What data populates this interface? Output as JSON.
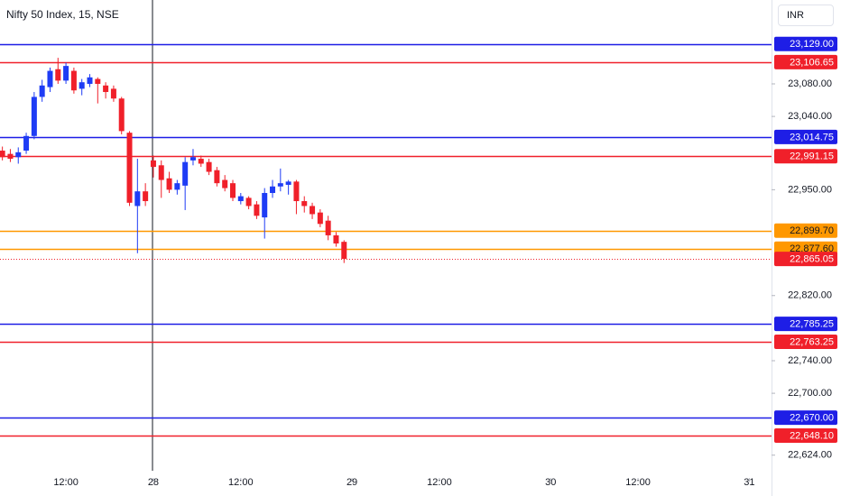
{
  "chart_data": {
    "type": "candlestick",
    "title": "Nifty 50 Index, 15, NSE",
    "currency": "INR",
    "up_color": "#1e3cf5",
    "down_color": "#f0202a",
    "x": [
      6,
      7,
      8,
      9,
      10,
      11,
      12,
      13,
      14,
      15,
      16,
      17,
      18,
      19,
      20,
      21,
      22,
      23,
      24,
      25,
      26,
      27,
      28,
      29,
      30,
      31,
      32,
      33,
      34,
      35,
      36,
      37,
      38,
      39,
      40,
      41,
      42,
      43,
      44,
      45,
      46,
      47,
      48,
      49
    ],
    "open": [
      22998,
      22994,
      22990,
      22998,
      23016,
      23064,
      23076,
      23098,
      23084,
      23096,
      23074,
      23080,
      23086,
      23078,
      23074,
      23062,
      23020,
      22930,
      22948,
      22986,
      22980,
      22964,
      22950,
      22955,
      22986,
      22988,
      22984,
      22974,
      22962,
      22958,
      22936,
      22940,
      22932,
      22916,
      22946,
      22954,
      22956,
      22960,
      22936,
      22930,
      22922,
      22912,
      22894,
      22886
    ],
    "high": [
      23003,
      23000,
      23002,
      23020,
      23070,
      23085,
      23100,
      23112,
      23106,
      23100,
      23086,
      23092,
      23088,
      23082,
      23078,
      23064,
      23022,
      22988,
      22958,
      22992,
      22986,
      22972,
      22962,
      22990,
      23000,
      22992,
      22988,
      22978,
      22968,
      22962,
      22946,
      22942,
      22936,
      22952,
      22962,
      22976,
      22962,
      22962,
      22942,
      22934,
      22926,
      22918,
      22898,
      22888
    ],
    "low": [
      22986,
      22984,
      22982,
      22994,
      23012,
      23058,
      23070,
      23080,
      23080,
      23068,
      23066,
      23076,
      23056,
      23062,
      23058,
      23018,
      22930,
      22872,
      22930,
      22965,
      22940,
      22946,
      22944,
      22925,
      22980,
      22978,
      22968,
      22954,
      22948,
      22936,
      22932,
      22926,
      22914,
      22890,
      22940,
      22948,
      22944,
      22920,
      22922,
      22914,
      22904,
      22888,
      22880,
      22860
    ],
    "close": [
      22990,
      22988,
      22996,
      23016,
      23064,
      23078,
      23096,
      23084,
      23102,
      23072,
      23082,
      23088,
      23080,
      23070,
      23062,
      23022,
      22934,
      22948,
      22936,
      22978,
      22962,
      22950,
      22958,
      22984,
      22990,
      22982,
      22972,
      22958,
      22952,
      22940,
      22942,
      22930,
      22918,
      22946,
      22954,
      22958,
      22960,
      22936,
      22930,
      22920,
      22908,
      22894,
      22884,
      22865.05
    ],
    "xlim": [
      5.7,
      102.8
    ],
    "xticks": [
      {
        "value": 14,
        "label": "12:00"
      },
      {
        "value": 25,
        "label": "28"
      },
      {
        "value": 36,
        "label": "12:00"
      },
      {
        "value": 50,
        "label": "29"
      },
      {
        "value": 61,
        "label": "12:00"
      },
      {
        "value": 75,
        "label": "30"
      },
      {
        "value": 86,
        "label": "12:00"
      },
      {
        "value": 100,
        "label": "31"
      }
    ],
    "ylim": [
      22596,
      23183
    ],
    "yticks": [
      {
        "value": 23080,
        "label": "23,080.00"
      },
      {
        "value": 23040,
        "label": "23,040.00"
      },
      {
        "value": 22950,
        "label": "22,950.00"
      },
      {
        "value": 22820,
        "label": "22,820.00"
      },
      {
        "value": 22740,
        "label": "22,740.00"
      },
      {
        "value": 22700,
        "label": "22,700.00"
      },
      {
        "value": 22624,
        "label": "22,624.00"
      }
    ],
    "levels": {
      "values": [
        23129,
        23106.65,
        23014.75,
        22991.15,
        22899.7,
        22877.6,
        22865.05,
        22785.25,
        22763.25,
        22670,
        22648.1
      ],
      "value_labels": [
        "23,129.00",
        "23,106.65",
        "23,014.75",
        "22,991.15",
        "22,899.70",
        "22,877.60",
        "22,865.05",
        "22,785.25",
        "22,763.25",
        "22,670.00",
        "22,648.10"
      ],
      "colors": [
        "#1e1ee6",
        "#f0202a",
        "#1e1ee6",
        "#f0202a",
        "#ff9800",
        "#ff9800",
        "#f0202a",
        "#1e1ee6",
        "#f0202a",
        "#1e1ee6",
        "#f0202a"
      ],
      "styles": [
        "solid",
        "solid",
        "solid",
        "solid",
        "solid",
        "solid",
        "dotted",
        "solid",
        "solid",
        "solid",
        "solid"
      ]
    }
  }
}
